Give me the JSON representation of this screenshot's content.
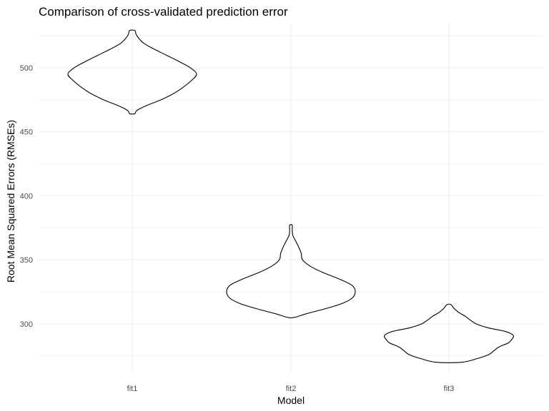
{
  "chart_data": {
    "type": "violin",
    "title": "Comparison of cross-validated prediction error",
    "xlabel": "Model",
    "ylabel": "Root Mean Squared Errors (RMSEs)",
    "categories": [
      "fit1",
      "fit2",
      "fit3"
    ],
    "ylim": [
      262,
      535
    ],
    "y_ticks": [
      300,
      350,
      400,
      450,
      500
    ],
    "y_tick_labels": [
      "300",
      "350",
      "400",
      "450",
      "500"
    ],
    "grid": true,
    "legend": "none",
    "distributions": [
      {
        "category": "fit1",
        "min": 464,
        "max": 529,
        "density_profile": [
          [
            464,
            0.04
          ],
          [
            466,
            0.06
          ],
          [
            468,
            0.12
          ],
          [
            471,
            0.25
          ],
          [
            475,
            0.45
          ],
          [
            480,
            0.65
          ],
          [
            485,
            0.8
          ],
          [
            490,
            0.92
          ],
          [
            495,
            1.0
          ],
          [
            500,
            0.9
          ],
          [
            505,
            0.72
          ],
          [
            510,
            0.52
          ],
          [
            515,
            0.32
          ],
          [
            519,
            0.18
          ],
          [
            523,
            0.1
          ],
          [
            526,
            0.06
          ],
          [
            529,
            0.04
          ]
        ]
      },
      {
        "category": "fit2",
        "min": 305,
        "max": 377,
        "density_profile": [
          [
            305,
            0.05
          ],
          [
            308,
            0.25
          ],
          [
            312,
            0.55
          ],
          [
            316,
            0.8
          ],
          [
            320,
            0.95
          ],
          [
            325,
            1.0
          ],
          [
            330,
            0.95
          ],
          [
            335,
            0.75
          ],
          [
            340,
            0.5
          ],
          [
            345,
            0.3
          ],
          [
            350,
            0.18
          ],
          [
            355,
            0.16
          ],
          [
            360,
            0.12
          ],
          [
            365,
            0.07
          ],
          [
            369,
            0.03
          ],
          [
            373,
            0.02
          ],
          [
            377,
            0.02
          ]
        ]
      },
      {
        "category": "fit3",
        "min": 270,
        "max": 315,
        "density_profile": [
          [
            270,
            0.2
          ],
          [
            273,
            0.45
          ],
          [
            276,
            0.62
          ],
          [
            279,
            0.7
          ],
          [
            282,
            0.78
          ],
          [
            285,
            0.92
          ],
          [
            288,
            0.98
          ],
          [
            291,
            1.0
          ],
          [
            294,
            0.88
          ],
          [
            297,
            0.6
          ],
          [
            300,
            0.42
          ],
          [
            303,
            0.33
          ],
          [
            306,
            0.25
          ],
          [
            309,
            0.15
          ],
          [
            312,
            0.08
          ],
          [
            315,
            0.03
          ]
        ]
      }
    ]
  }
}
